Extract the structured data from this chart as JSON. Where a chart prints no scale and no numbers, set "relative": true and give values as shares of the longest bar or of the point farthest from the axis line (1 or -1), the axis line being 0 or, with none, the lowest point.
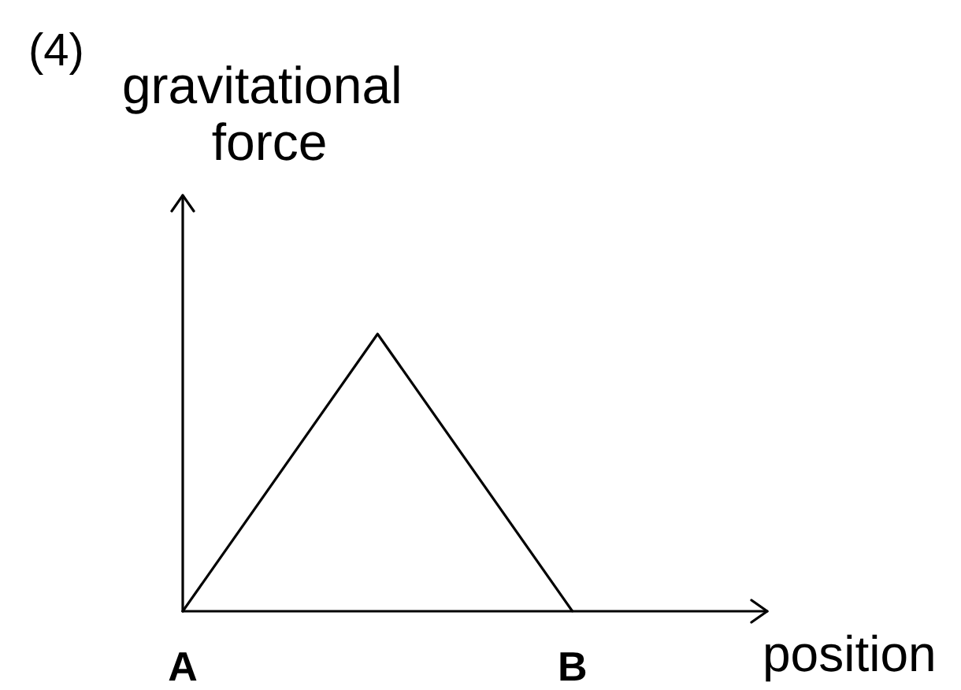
{
  "chart_data": {
    "type": "line",
    "title": "(4)",
    "xlabel": "position",
    "ylabel": "gravitational force",
    "categories": [
      "A",
      null,
      "B",
      null
    ],
    "series": [
      {
        "color": "#000000",
        "values": [
          0,
          1,
          0,
          null
        ]
      }
    ],
    "relative": true,
    "grid": false,
    "marker": "none",
    "line_style": "solid"
  }
}
